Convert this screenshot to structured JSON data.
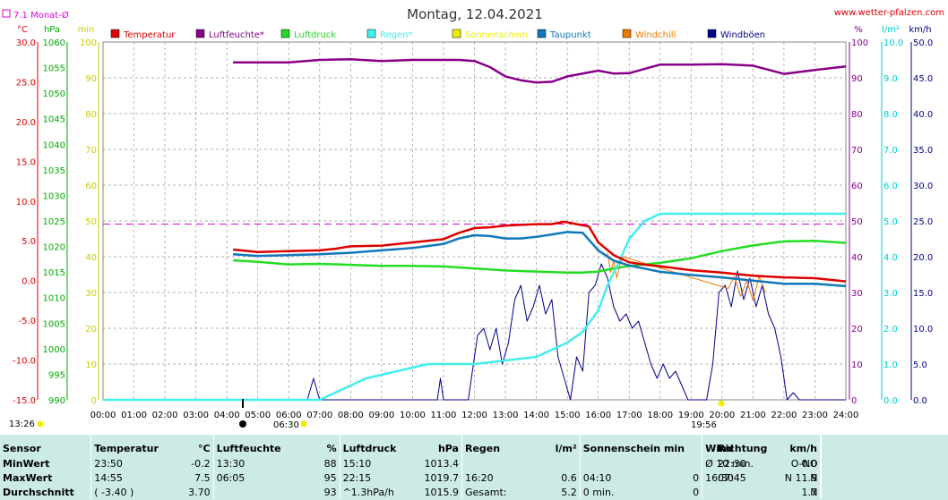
{
  "header": {
    "title": "Montag, 12.04.2021",
    "website": "www.wetter-pfalzen.com",
    "monthly_avg": "7.1 Monat-Ø",
    "sunrise_time": "06:30",
    "sunset_time": "19:56",
    "daylight_duration": "13:26"
  },
  "colors": {
    "temperature": "#dd0000",
    "humidity": "#880088",
    "pressure": "#22dd22",
    "rain": "#44eeee",
    "sunshine": "#eeee00",
    "dewpoint": "#1177bb",
    "windchill": "#ee7700",
    "gusts": "#000088",
    "monthly_avg": "#dd00dd",
    "stats_background": "#cdebe6"
  },
  "chart_data": {
    "type": "line",
    "x_unit": "time of day (hours)",
    "x_ticks": [
      "00:00",
      "01:00",
      "02:00",
      "03:00",
      "04:00",
      "05:00",
      "06:00",
      "07:00",
      "08:00",
      "09:00",
      "10:00",
      "11:00",
      "12:00",
      "13:00",
      "14:00",
      "15:00",
      "16:00",
      "17:00",
      "18:00",
      "19:00",
      "20:00",
      "21:00",
      "22:00",
      "23:00",
      "24:00"
    ],
    "grid": true,
    "monthly_average_temperature": 7.1,
    "axes": {
      "temperature": {
        "unit": "°C",
        "range": [
          -15,
          30
        ],
        "ticks": [
          "-15.0",
          "-10.0",
          "-5.0",
          "0.0",
          "5.0",
          "10.0",
          "15.0",
          "20.0",
          "25.0",
          "30.0"
        ]
      },
      "pressure": {
        "unit": "hPa",
        "range": [
          990,
          1060
        ],
        "ticks": [
          "990",
          "995",
          "1000",
          "1005",
          "1010",
          "1015",
          "1020",
          "1025",
          "1030",
          "1035",
          "1040",
          "1045",
          "1050",
          "1055",
          "1060"
        ]
      },
      "sunshine": {
        "unit": "min",
        "range": [
          0,
          100
        ],
        "ticks": [
          "0",
          "10",
          "20",
          "30",
          "40",
          "50",
          "60",
          "70",
          "80",
          "90",
          "100"
        ]
      },
      "humidity": {
        "unit": "%",
        "range": [
          0,
          100
        ],
        "ticks": [
          "0",
          "10",
          "20",
          "30",
          "40",
          "50",
          "60",
          "70",
          "80",
          "90",
          "100"
        ]
      },
      "rain": {
        "unit": "l/m²",
        "range": [
          0,
          10
        ],
        "ticks": [
          "0.0",
          "1.0",
          "2.0",
          "3.0",
          "4.0",
          "5.0",
          "6.0",
          "7.0",
          "8.0",
          "9.0",
          "10.0"
        ]
      },
      "wind": {
        "unit": "km/h",
        "range": [
          0,
          50
        ],
        "ticks": [
          "0.0",
          "5.0",
          "10.0",
          "15.0",
          "20.0",
          "25.0",
          "30.0",
          "35.0",
          "40.0",
          "45.0",
          "50.0"
        ]
      }
    },
    "series": [
      {
        "name": "Temperatur",
        "axis": "temperature",
        "x": [
          4.2,
          5,
          6,
          7,
          7.5,
          8,
          9,
          10,
          11,
          11.5,
          12,
          12.5,
          13,
          13.5,
          14,
          14.5,
          14.9,
          15.3,
          15.7,
          16,
          16.5,
          17,
          17.5,
          18,
          19,
          20,
          21,
          22,
          23,
          24
        ],
        "y": [
          3.9,
          3.6,
          3.7,
          3.8,
          4.0,
          4.3,
          4.4,
          4.8,
          5.2,
          6.0,
          6.6,
          6.7,
          6.9,
          7.0,
          7.1,
          7.1,
          7.4,
          7.1,
          6.8,
          4.8,
          3.2,
          2.3,
          2.0,
          1.8,
          1.3,
          1.0,
          0.6,
          0.4,
          0.3,
          -0.1
        ]
      },
      {
        "name": "Luftfeuchte*",
        "axis": "humidity",
        "x": [
          4.2,
          5,
          6,
          7,
          8,
          9,
          10,
          11,
          11.5,
          12,
          12.5,
          13,
          13.5,
          14,
          14.5,
          15,
          16,
          16.5,
          17,
          18,
          19,
          20,
          21,
          22,
          23,
          24
        ],
        "y": [
          94.3,
          94.3,
          94.3,
          95,
          95.2,
          94.7,
          95,
          95,
          95,
          94.7,
          93,
          90.4,
          89.3,
          88.7,
          88.9,
          90.4,
          92,
          91.2,
          91.3,
          93.7,
          93.7,
          93.8,
          93.4,
          91.1,
          92.2,
          93.2
        ]
      },
      {
        "name": "Luftdruck",
        "axis": "pressure",
        "x": [
          4.2,
          5,
          6,
          7,
          8,
          9,
          10,
          11,
          12,
          13,
          14,
          15,
          15.5,
          16,
          16.5,
          17,
          18,
          19,
          20,
          21,
          22,
          23,
          24
        ],
        "y": [
          1017.3,
          1017.0,
          1016.5,
          1016.6,
          1016.4,
          1016.2,
          1016.2,
          1016.1,
          1015.7,
          1015.3,
          1015.1,
          1014.9,
          1014.9,
          1015.1,
          1015.7,
          1016.2,
          1016.8,
          1017.7,
          1019.1,
          1020.2,
          1021.0,
          1021.1,
          1020.7
        ]
      },
      {
        "name": "Regen*",
        "axis": "rain",
        "x": [
          0,
          6.5,
          7,
          7.5,
          8,
          8.5,
          9,
          9.5,
          10,
          10.5,
          11,
          12,
          13,
          14,
          14.5,
          15,
          15.5,
          16,
          16.3,
          16.7,
          17,
          17.5,
          18,
          18.5,
          19,
          20,
          21,
          22,
          23,
          24
        ],
        "y": [
          0,
          0,
          0,
          0.2,
          0.4,
          0.6,
          0.7,
          0.8,
          0.9,
          1.0,
          1.0,
          1.0,
          1.1,
          1.2,
          1.4,
          1.6,
          1.9,
          2.5,
          3.2,
          3.9,
          4.5,
          5.0,
          5.2,
          5.2,
          5.2,
          5.2,
          5.2,
          5.2,
          5.2,
          5.2
        ]
      },
      {
        "name": "Sonnenschein",
        "axis": "sunshine",
        "x": [],
        "y": []
      },
      {
        "name": "Taupunkt",
        "axis": "temperature",
        "x": [
          4.2,
          5,
          6,
          7,
          8,
          9,
          10,
          11,
          11.5,
          12,
          12.5,
          13,
          13.5,
          14,
          14.5,
          15,
          15.5,
          16,
          16.5,
          17,
          17.5,
          18,
          19,
          20,
          21,
          22,
          23,
          24
        ],
        "y": [
          3.3,
          3.1,
          3.2,
          3.3,
          3.5,
          3.8,
          4.1,
          4.6,
          5.3,
          5.7,
          5.6,
          5.3,
          5.3,
          5.5,
          5.8,
          6.1,
          6.0,
          3.8,
          2.5,
          1.9,
          1.5,
          1.1,
          0.7,
          0.4,
          0.0,
          -0.4,
          -0.4,
          -0.7
        ]
      },
      {
        "name": "Windchill",
        "axis": "temperature",
        "x": [
          16.3,
          16.4,
          16.5,
          16.6,
          16.7,
          16.8,
          20.2,
          20.4,
          20.6,
          20.8,
          21.0,
          21.2,
          21.4
        ],
        "y": [
          3.5,
          1.0,
          2.5,
          0.3,
          2.0,
          3.0,
          -1.0,
          0.5,
          -2.0,
          0.0,
          -2.5,
          0.5,
          -1.5
        ]
      },
      {
        "name": "Windböen",
        "axis": "wind",
        "x": [
          0,
          6.6,
          6.8,
          7.0,
          10.8,
          10.9,
          11.0,
          11.8,
          12.1,
          12.3,
          12.5,
          12.7,
          12.9,
          13.1,
          13.3,
          13.5,
          13.7,
          13.9,
          14.1,
          14.3,
          14.5,
          14.7,
          14.9,
          15.1,
          15.3,
          15.5,
          15.7,
          15.9,
          16.1,
          16.3,
          16.5,
          16.7,
          16.9,
          17.1,
          17.3,
          17.5,
          17.7,
          17.9,
          18.1,
          18.3,
          18.5,
          18.7,
          18.9,
          19.1,
          19.3,
          19.5,
          19.7,
          19.9,
          20.1,
          20.3,
          20.5,
          20.7,
          20.9,
          21.1,
          21.3,
          21.5,
          21.7,
          21.9,
          22.1,
          22.3,
          22.5,
          22.7,
          22.9,
          23.1,
          24
        ],
        "y": [
          0,
          0,
          3,
          0,
          0,
          3,
          0,
          0,
          9,
          10,
          7,
          10,
          5,
          8,
          14,
          16,
          11,
          13,
          16,
          12,
          14,
          6,
          3,
          0,
          6,
          4,
          15,
          16,
          19,
          17,
          13,
          11,
          12,
          10,
          11,
          8,
          5,
          3,
          5,
          3,
          4,
          2,
          0,
          0,
          0,
          0,
          5,
          15,
          16,
          13,
          18,
          14,
          17,
          13,
          16,
          12,
          10,
          6,
          0,
          1,
          0,
          0,
          0,
          0,
          0
        ]
      }
    ]
  },
  "legend": [
    {
      "label": "Temperatur",
      "color": "#dd0000"
    },
    {
      "label": "Luftfeuchte*",
      "color": "#880088"
    },
    {
      "label": "Luftdruck",
      "color": "#22dd22"
    },
    {
      "label": "Regen*",
      "color": "#44eeee"
    },
    {
      "label": "Sonnenschein",
      "color": "#eeee00"
    },
    {
      "label": "Taupunkt",
      "color": "#1177bb"
    },
    {
      "label": "Windchill",
      "color": "#ee7700"
    },
    {
      "label": "Windböen",
      "color": "#000088"
    }
  ],
  "stats": {
    "headers": {
      "sensor": "Sensor",
      "temperature": "Temperatur",
      "temperature_unit": "°C",
      "humidity": "Luftfeuchte",
      "humidity_unit": "%",
      "pressure": "Luftdruck",
      "pressure_unit": "hPa",
      "rain": "Regen",
      "rain_unit": "l/m²",
      "sunshine": "Sonnenschein min",
      "wind": "Wind",
      "wind_unit": "km/h",
      "direction": "Richtung"
    },
    "rows": [
      {
        "label": "MinWert",
        "temp_time": "23:50",
        "temp_val": "-0.2",
        "hum_time": "13:30",
        "hum_val": "88",
        "press_time": "15:10",
        "press_val": "1013.4",
        "rain_time": "",
        "rain_val": "",
        "sun_time": "",
        "sun_val": "",
        "wind_time": "Ø 10 min.",
        "wind_val": "0.0",
        "dir_time": "22:30",
        "dir_val": "O-NO"
      },
      {
        "label": "MaxWert",
        "temp_time": "14:55",
        "temp_val": "7.5",
        "hum_time": "06:05",
        "hum_val": "95",
        "press_time": "22:15",
        "press_val": "1019.7",
        "rain_time": "16:20",
        "rain_val": "0.6",
        "sun_time": "04:10",
        "sun_val": "0",
        "wind_time": "16:30",
        "wind_val": "N 11.9",
        "dir_time": "07:45",
        "dir_val": "N"
      },
      {
        "label": "Durchschnitt",
        "temp_time": "( -3.40 )",
        "temp_val": "3.70",
        "hum_time": "",
        "hum_val": "93",
        "press_time": "^1.3hPa/h",
        "press_val": "1015.9",
        "rain_time": "Gesamt:",
        "rain_val": "5.2",
        "sun_time": "0 min.",
        "sun_val": "0",
        "wind_time": "",
        "wind_val": "1.7",
        "dir_time": "",
        "dir_val": "N"
      }
    ]
  }
}
